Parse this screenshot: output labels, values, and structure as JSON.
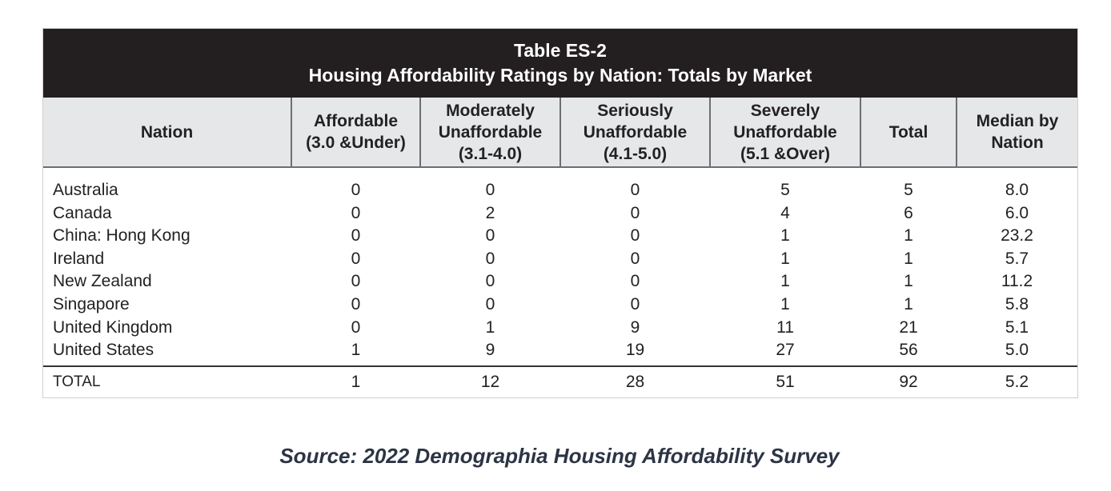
{
  "table": {
    "title_line1": "Table ES-2",
    "title_line2": "Housing Affordability Ratings by Nation: Totals by Market",
    "headers": [
      [
        "Nation"
      ],
      [
        "Affordable",
        "(3.0 &Under)"
      ],
      [
        "Moderately",
        "Unaffordable",
        "(3.1-4.0)"
      ],
      [
        "Seriously",
        "Unaffordable",
        "(4.1-5.0)"
      ],
      [
        "Severely",
        "Unaffordable",
        "(5.1 &Over)"
      ],
      [
        "Total"
      ],
      [
        "Median by",
        "Nation"
      ]
    ],
    "rows": [
      [
        "Australia",
        "0",
        "0",
        "0",
        "5",
        "5",
        "8.0"
      ],
      [
        "Canada",
        "0",
        "2",
        "0",
        "4",
        "6",
        "6.0"
      ],
      [
        "China: Hong Kong",
        "0",
        "0",
        "0",
        "1",
        "1",
        "23.2"
      ],
      [
        "Ireland",
        "0",
        "0",
        "0",
        "1",
        "1",
        "5.7"
      ],
      [
        "New Zealand",
        "0",
        "0",
        "0",
        "1",
        "1",
        "11.2"
      ],
      [
        "Singapore",
        "0",
        "0",
        "0",
        "1",
        "1",
        "5.8"
      ],
      [
        "United Kingdom",
        "0",
        "1",
        "9",
        "11",
        "21",
        "5.1"
      ],
      [
        "United States",
        "1",
        "9",
        "19",
        "27",
        "56",
        "5.0"
      ]
    ],
    "total": [
      "TOTAL",
      "1",
      "12",
      "28",
      "51",
      "92",
      "5.2"
    ]
  },
  "source": "Source: 2022 Demographia Housing Affordability Survey"
}
